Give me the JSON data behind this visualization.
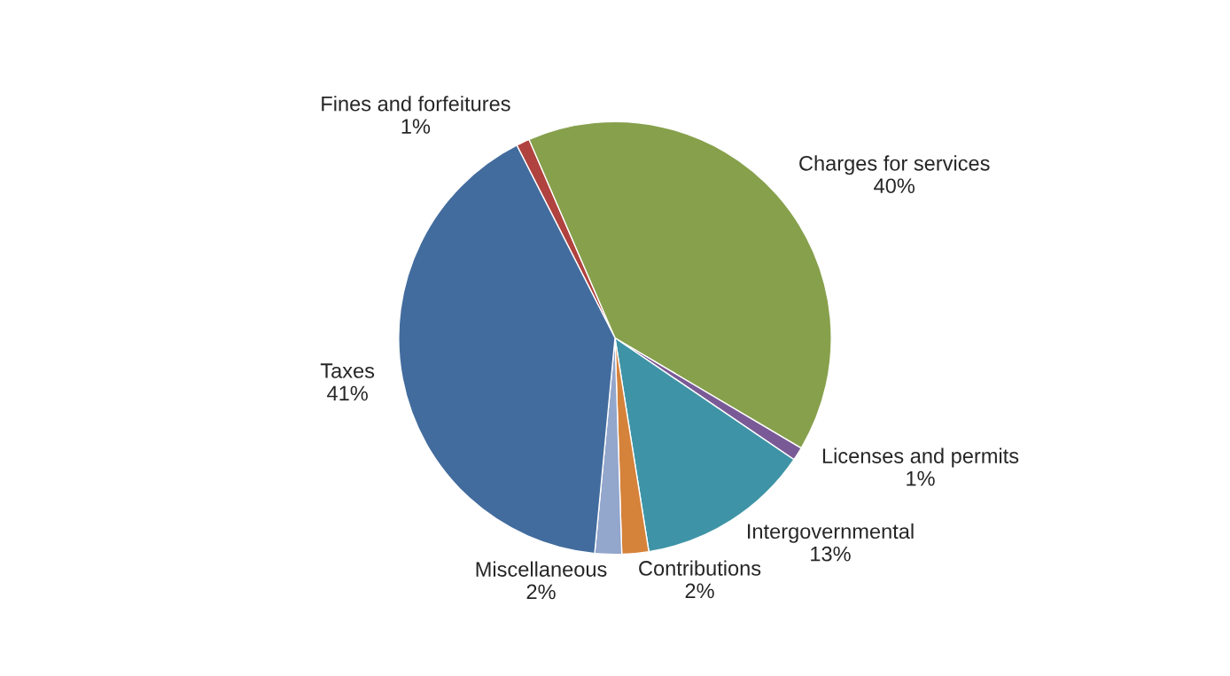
{
  "chart_data": {
    "type": "pie",
    "categories": [
      "Fines and forfeitures",
      "Charges for services",
      "Licenses and permits",
      "Intergovernmental",
      "Contributions",
      "Miscellaneous",
      "Taxes"
    ],
    "values": [
      1,
      40,
      1,
      13,
      2,
      2,
      41
    ],
    "value_labels": [
      "1%",
      "40%",
      "1%",
      "13%",
      "2%",
      "2%",
      "41%"
    ],
    "colors": [
      "#b0433f",
      "#87a04c",
      "#7a5a96",
      "#3e94a6",
      "#d5823a",
      "#93a6cc",
      "#436c9e"
    ]
  }
}
